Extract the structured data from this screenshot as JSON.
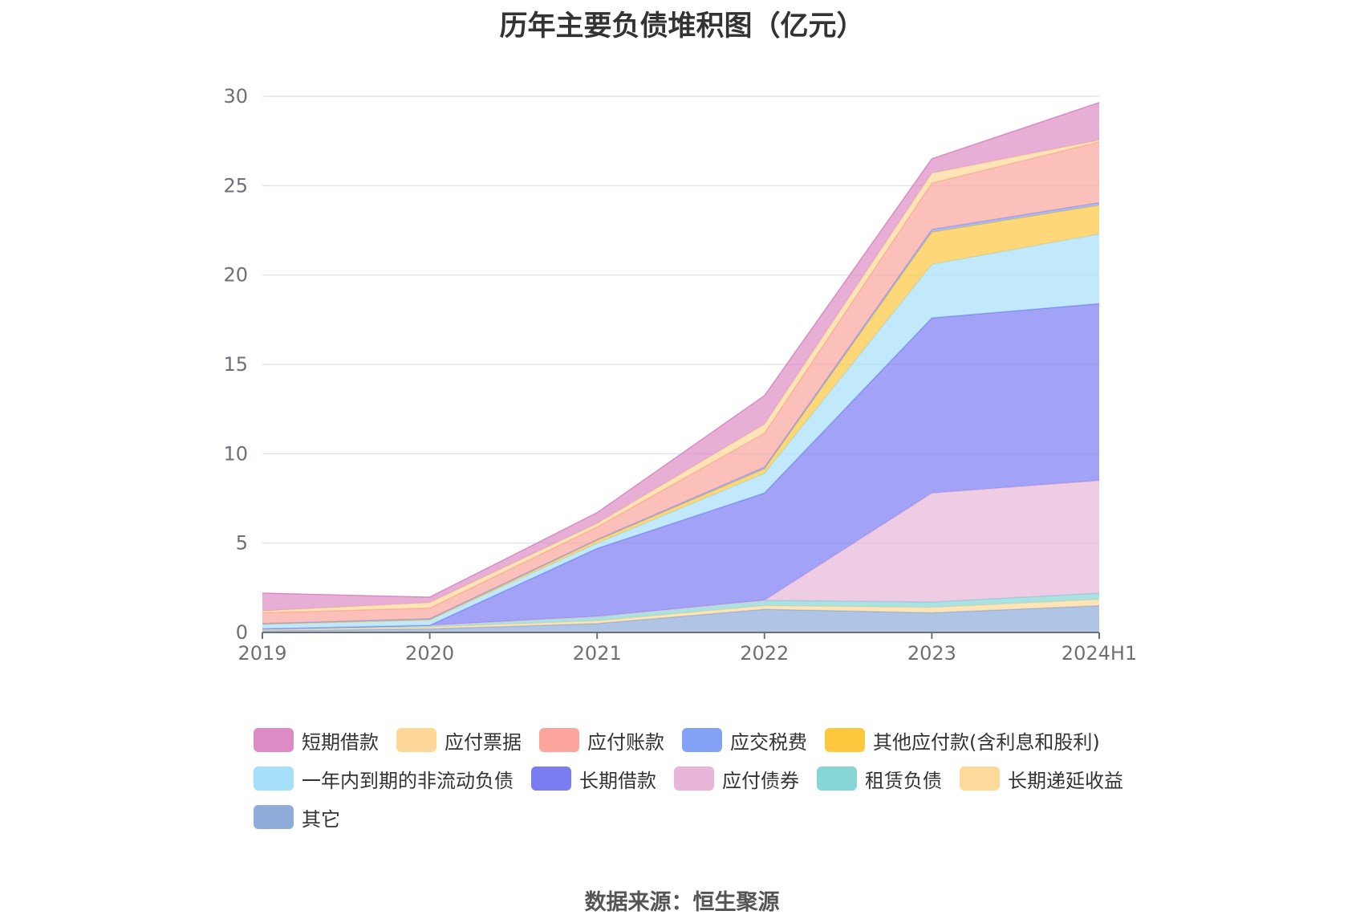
{
  "title": "历年主要负债堆积图（亿元）",
  "source": "数据来源：恒生聚源",
  "chart_data": {
    "type": "area",
    "stacked": true,
    "categories": [
      "2019",
      "2020",
      "2021",
      "2022",
      "2023",
      "2024H1"
    ],
    "ylim": [
      0,
      30
    ],
    "yticks": [
      0,
      5,
      10,
      15,
      20,
      25,
      30
    ],
    "grid": true,
    "legend_position": "bottom",
    "series": [
      {
        "name": "其它",
        "color": "#8eaddb",
        "values": [
          0.1,
          0.2,
          0.5,
          1.3,
          1.1,
          1.5
        ]
      },
      {
        "name": "长期递延收益",
        "color": "#fdd99b",
        "values": [
          0.05,
          0.1,
          0.15,
          0.2,
          0.3,
          0.35
        ]
      },
      {
        "name": "租赁负债",
        "color": "#86d6d6",
        "values": [
          0.05,
          0.1,
          0.25,
          0.3,
          0.3,
          0.35
        ]
      },
      {
        "name": "应付债券",
        "color": "#e7b6d9",
        "values": [
          0,
          0,
          0,
          0,
          6.1,
          6.3
        ]
      },
      {
        "name": "长期借款",
        "color": "#7a7cf2",
        "values": [
          0,
          0,
          3.8,
          6.0,
          9.8,
          9.9
        ]
      },
      {
        "name": "一年内到期的非流动负债",
        "color": "#a6dff9",
        "values": [
          0.25,
          0.3,
          0.3,
          1.1,
          3.0,
          3.9
        ]
      },
      {
        "name": "其他应付款(含利息和股利)",
        "color": "#fdc83e",
        "values": [
          0.02,
          0.02,
          0.15,
          0.25,
          1.8,
          1.6
        ]
      },
      {
        "name": "应交税费",
        "color": "#84a1f8",
        "values": [
          0.03,
          0.05,
          0.05,
          0.1,
          0.15,
          0.15
        ]
      },
      {
        "name": "应付账款",
        "color": "#fba59c",
        "values": [
          0.6,
          0.6,
          0.7,
          1.9,
          2.6,
          3.4
        ]
      },
      {
        "name": "应付票据",
        "color": "#fed899",
        "values": [
          0.1,
          0.3,
          0.2,
          0.5,
          0.55,
          0.1
        ]
      },
      {
        "name": "短期借款",
        "color": "#dd8bc5",
        "values": [
          1.0,
          0.3,
          0.6,
          1.6,
          0.8,
          2.1
        ]
      }
    ],
    "legend": [
      {
        "name": "短期借款",
        "color": "#dd8bc5"
      },
      {
        "name": "应付票据",
        "color": "#fed899"
      },
      {
        "name": "应付账款",
        "color": "#fba59c"
      },
      {
        "name": "应交税费",
        "color": "#84a1f8"
      },
      {
        "name": "其他应付款(含利息和股利)",
        "color": "#fdc83e"
      },
      {
        "name": "一年内到期的非流动负债",
        "color": "#a6dff9"
      },
      {
        "name": "长期借款",
        "color": "#7a7cf2"
      },
      {
        "name": "应付债券",
        "color": "#e7b6d9"
      },
      {
        "name": "租赁负债",
        "color": "#86d6d6"
      },
      {
        "name": "长期递延收益",
        "color": "#fdd99b"
      },
      {
        "name": "其它",
        "color": "#8eaddb"
      }
    ]
  }
}
